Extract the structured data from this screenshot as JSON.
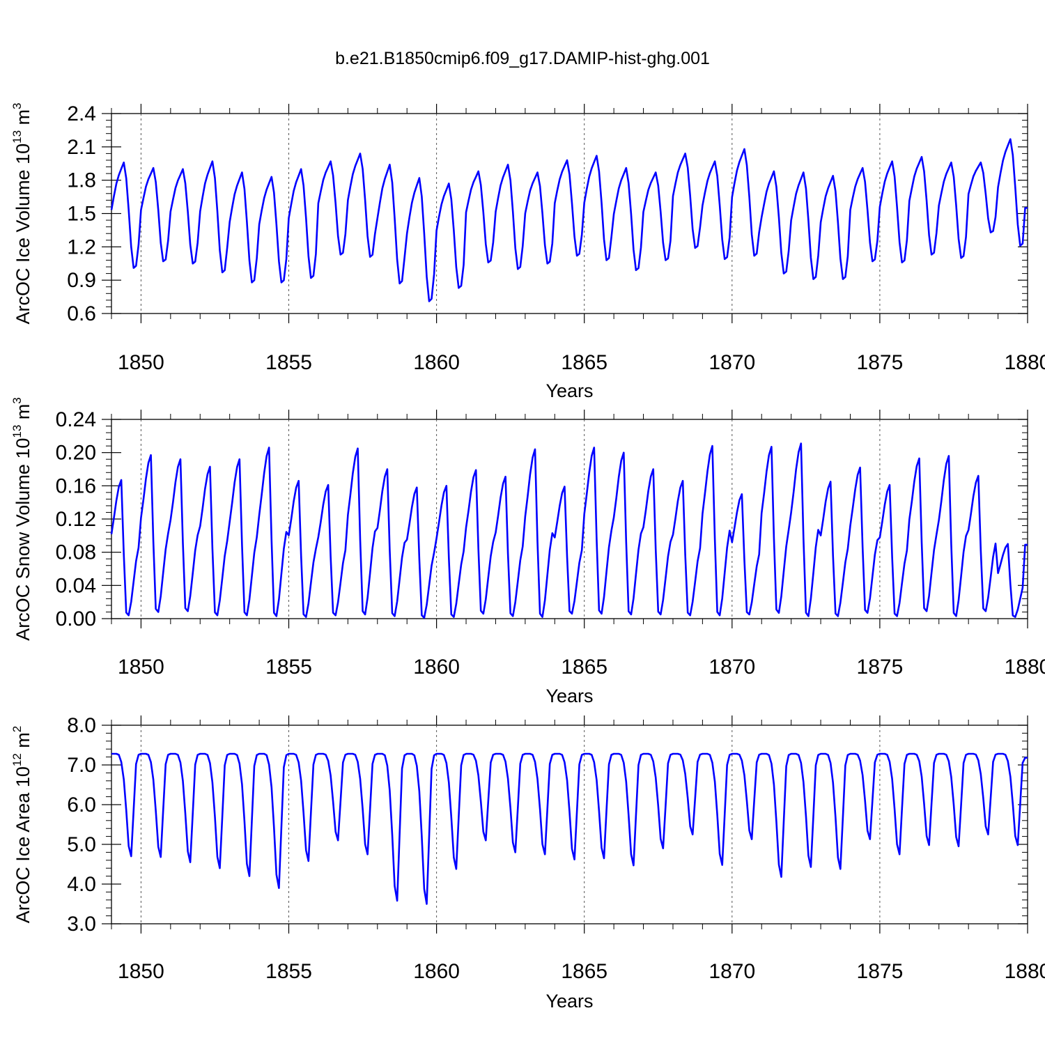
{
  "title": "b.e21.B1850cmip6.f09_g17.DAMIP-hist-ghg.001",
  "line_color": "#0000ff",
  "chart_data": [
    {
      "type": "line",
      "title": "",
      "xlabel": "Years",
      "ylabel": "ArcOC Ice Volume 10¹³ m³",
      "ylabel_parts": {
        "base": "ArcOC Ice Volume 10",
        "exp1": "13",
        "mid": " m",
        "exp2": "3"
      },
      "xlim": [
        1849,
        1880
      ],
      "ylim": [
        0.6,
        2.4
      ],
      "xticks": [
        "1850",
        "1855",
        "1860",
        "1865",
        "1870",
        "1875",
        "1880"
      ],
      "yticks": [
        "0.6",
        "0.9",
        "1.2",
        "1.5",
        "1.8",
        "2.1",
        "2.4"
      ],
      "grid": "vertical dashed at labeled years",
      "series": [
        {
          "name": "ArcOC Ice Volume",
          "start_year": 1849.0,
          "step": 0.0833,
          "min_values": [
            1.01,
            1.07,
            1.05,
            0.97,
            0.88,
            0.88,
            0.92,
            1.13,
            1.11,
            0.87,
            0.71,
            0.83,
            1.06,
            1.0,
            1.05,
            1.12,
            1.08,
            0.99,
            1.08,
            1.19,
            1.09,
            1.12,
            0.96,
            0.91,
            0.91,
            1.07,
            1.06,
            1.13,
            1.1,
            1.33,
            1.21
          ],
          "max_values": [
            1.96,
            1.91,
            1.9,
            1.97,
            1.87,
            1.83,
            1.9,
            1.97,
            2.04,
            1.94,
            1.82,
            1.77,
            1.88,
            1.94,
            1.87,
            1.98,
            2.02,
            1.91,
            1.87,
            2.04,
            1.97,
            2.08,
            1.88,
            1.87,
            1.84,
            1.91,
            1.97,
            2.01,
            1.96,
            1.96,
            2.17
          ],
          "end_value": 1.55
        }
      ]
    },
    {
      "type": "line",
      "title": "",
      "xlabel": "Years",
      "ylabel": "ArcOC Snow Volume 10¹³ m³",
      "ylabel_parts": {
        "base": "ArcOC Snow Volume 10",
        "exp1": "13",
        "mid": " m",
        "exp2": "3"
      },
      "xlim": [
        1849,
        1880
      ],
      "ylim": [
        0.0,
        0.24
      ],
      "xticks": [
        "1850",
        "1855",
        "1860",
        "1865",
        "1870",
        "1875",
        "1880"
      ],
      "yticks": [
        "0.00",
        "0.04",
        "0.08",
        "0.12",
        "0.16",
        "0.20",
        "0.24"
      ],
      "grid": "vertical dashed at labeled years",
      "series": [
        {
          "name": "ArcOC Snow Volume",
          "start_year": 1849.0,
          "step": 0.0833,
          "min_values": [
            0.004,
            0.008,
            0.009,
            0.004,
            0.004,
            0.003,
            0.002,
            0.004,
            0.005,
            0.003,
            0.001,
            0.002,
            0.006,
            0.003,
            0.002,
            0.006,
            0.006,
            0.005,
            0.005,
            0.004,
            0.004,
            0.005,
            0.007,
            0.003,
            0.003,
            0.007,
            0.003,
            0.009,
            0.003,
            0.009,
            0.002
          ],
          "max_values": [
            0.167,
            0.197,
            0.192,
            0.183,
            0.192,
            0.206,
            0.166,
            0.161,
            0.205,
            0.18,
            0.158,
            0.16,
            0.179,
            0.171,
            0.204,
            0.159,
            0.206,
            0.2,
            0.18,
            0.166,
            0.208,
            0.15,
            0.207,
            0.211,
            0.165,
            0.182,
            0.161,
            0.193,
            0.196,
            0.172,
            0.09
          ],
          "end_value": 0.089
        }
      ]
    },
    {
      "type": "line",
      "title": "",
      "xlabel": "Years",
      "ylabel": "ArcOC Ice Area 10¹² m²",
      "ylabel_parts": {
        "base": "ArcOC Ice Area 10",
        "exp1": "12",
        "mid": " m",
        "exp2": "2"
      },
      "xlim": [
        1849,
        1880
      ],
      "ylim": [
        3.0,
        8.0
      ],
      "xticks": [
        "1850",
        "1855",
        "1860",
        "1865",
        "1870",
        "1875",
        "1880"
      ],
      "yticks": [
        "3.0",
        "4.0",
        "5.0",
        "6.0",
        "7.0",
        "8.0"
      ],
      "grid": "vertical dashed at labeled years",
      "series": [
        {
          "name": "ArcOC Ice Area",
          "start_year": 1849.0,
          "step": 0.0833,
          "max_values": [
            7.28,
            7.28,
            7.28,
            7.28,
            7.28,
            7.28,
            7.28,
            7.28,
            7.28,
            7.28,
            7.28,
            7.28,
            7.28,
            7.28,
            7.28,
            7.28,
            7.28,
            7.28,
            7.28,
            7.28,
            7.28,
            7.28,
            7.28,
            7.28,
            7.28,
            7.28,
            7.28,
            7.28,
            7.28,
            7.28,
            7.28
          ],
          "min_values": [
            4.7,
            4.68,
            4.55,
            4.4,
            4.2,
            3.9,
            4.58,
            5.1,
            4.75,
            3.58,
            3.5,
            4.38,
            5.1,
            4.8,
            4.75,
            4.62,
            4.65,
            4.47,
            4.9,
            5.25,
            4.48,
            5.13,
            4.18,
            4.43,
            4.38,
            5.13,
            4.75,
            4.98,
            4.95,
            5.25,
            4.98
          ],
          "end_value": 7.18
        }
      ]
    }
  ]
}
